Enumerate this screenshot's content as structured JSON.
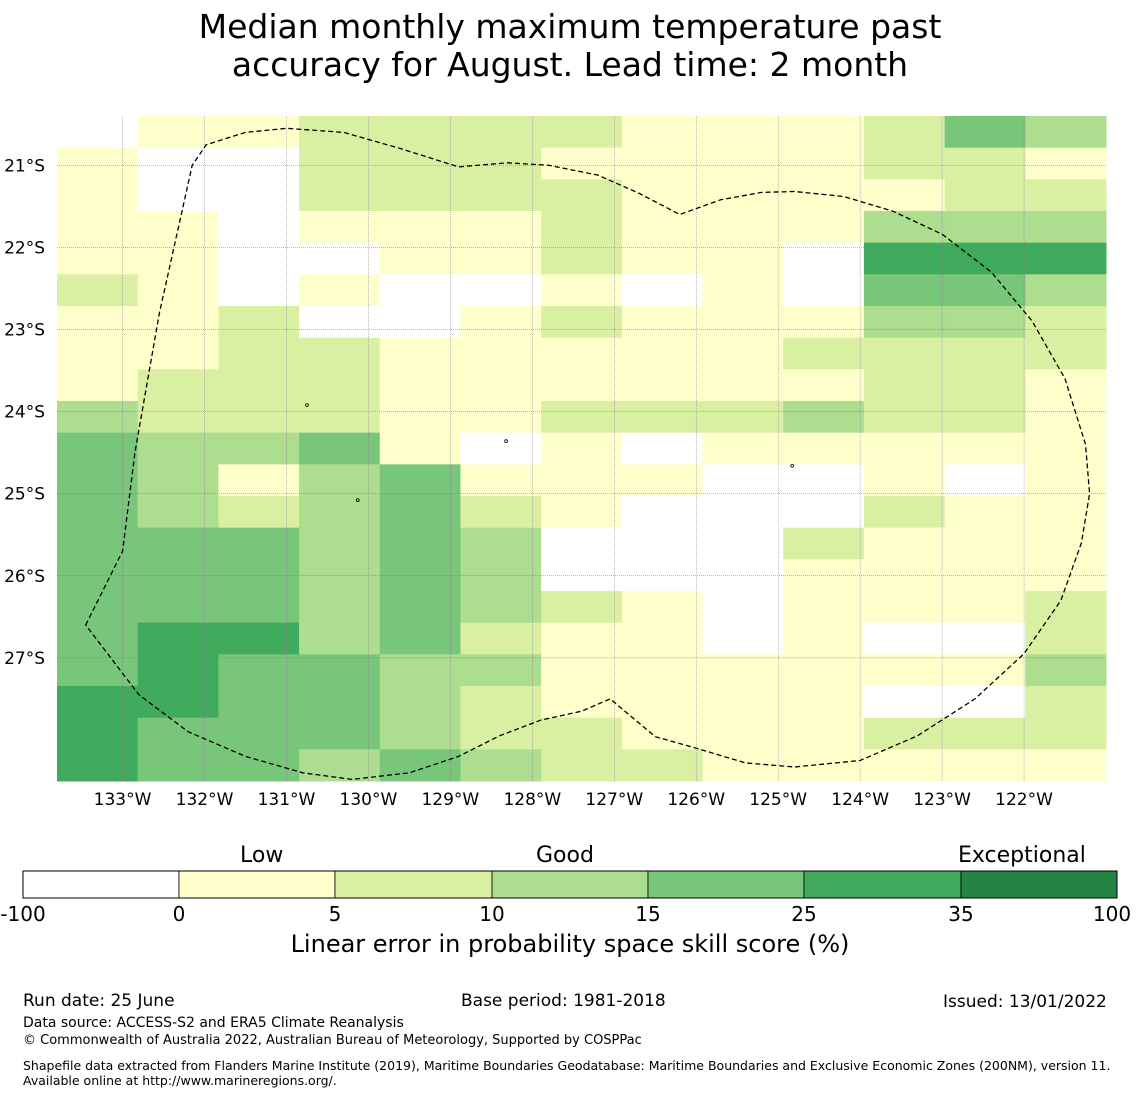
{
  "title": {
    "line1": "Median monthly maximum temperature past",
    "line2": "accuracy for August. Lead time: 2 month"
  },
  "map": {
    "lon_labels": [
      "133°W",
      "132°W",
      "131°W",
      "130°W",
      "129°W",
      "128°W",
      "127°W",
      "126°W",
      "125°W",
      "124°W",
      "123°W",
      "122°W"
    ],
    "lat_labels": [
      "21°S",
      "22°S",
      "23°S",
      "24°S",
      "25°S",
      "26°S",
      "27°S"
    ],
    "lon_range": [
      -133.8,
      -121.0
    ],
    "lat_range": [
      -20.4,
      -28.5
    ],
    "grid_rows": [
      "0112222111243",
      "1002221111221",
      "1002222111122",
      "1101112111333",
      "1100112110555",
      "2101001010443",
      "1120012111332",
      "1122111112222",
      "1222111111221",
      "3222112223221",
      "4334101011111",
      "4313411100101",
      "4323421000211",
      "4443430002111",
      "4443430001111",
      "4443432101112",
      "4553421101002",
      "4544331111113",
      "5544321111002",
      "5444322111222",
      "5443432211111"
    ],
    "boundary_lonlat": [
      [
        -133.45,
        -26.6
      ],
      [
        -133.0,
        -25.7
      ],
      [
        -132.85,
        -24.5
      ],
      [
        -132.55,
        -22.8
      ],
      [
        -132.15,
        -21.0
      ],
      [
        -131.98,
        -20.75
      ],
      [
        -131.5,
        -20.6
      ],
      [
        -131.0,
        -20.55
      ],
      [
        -130.3,
        -20.6
      ],
      [
        -129.6,
        -20.8
      ],
      [
        -128.9,
        -21.02
      ],
      [
        -128.3,
        -20.97
      ],
      [
        -127.8,
        -21.0
      ],
      [
        -127.2,
        -21.12
      ],
      [
        -126.7,
        -21.34
      ],
      [
        -126.2,
        -21.6
      ],
      [
        -125.7,
        -21.42
      ],
      [
        -125.2,
        -21.33
      ],
      [
        -124.8,
        -21.32
      ],
      [
        -124.2,
        -21.38
      ],
      [
        -123.6,
        -21.56
      ],
      [
        -123.0,
        -21.84
      ],
      [
        -122.4,
        -22.3
      ],
      [
        -121.9,
        -22.9
      ],
      [
        -121.5,
        -23.6
      ],
      [
        -121.25,
        -24.4
      ],
      [
        -121.2,
        -25.0
      ],
      [
        -121.3,
        -25.6
      ],
      [
        -121.55,
        -26.3
      ],
      [
        -122.0,
        -26.95
      ],
      [
        -122.6,
        -27.5
      ],
      [
        -123.3,
        -27.95
      ],
      [
        -124.0,
        -28.25
      ],
      [
        -124.8,
        -28.33
      ],
      [
        -125.4,
        -28.28
      ],
      [
        -126.0,
        -28.1
      ],
      [
        -126.5,
        -27.96
      ],
      [
        -127.05,
        -27.5
      ],
      [
        -127.4,
        -27.65
      ],
      [
        -127.9,
        -27.76
      ],
      [
        -128.4,
        -27.95
      ],
      [
        -128.9,
        -28.2
      ],
      [
        -129.5,
        -28.4
      ],
      [
        -130.2,
        -28.48
      ],
      [
        -130.8,
        -28.4
      ],
      [
        -131.5,
        -28.2
      ],
      [
        -132.2,
        -27.9
      ],
      [
        -132.8,
        -27.45
      ],
      [
        -133.45,
        -26.6
      ]
    ],
    "island_markers": [
      [
        -130.75,
        -23.92
      ],
      [
        -128.32,
        -24.36
      ],
      [
        -124.83,
        -24.66
      ],
      [
        -130.13,
        -25.08
      ]
    ]
  },
  "colorbar": {
    "category_labels": [
      "Low",
      "Good",
      "Exceptional"
    ],
    "ticks": [
      "-100",
      "0",
      "5",
      "10",
      "15",
      "25",
      "35",
      "100"
    ],
    "colors": [
      "#ffffff",
      "#ffffcc",
      "#d9f0a3",
      "#addd8e",
      "#78c679",
      "#41ab5d",
      "#238443"
    ],
    "title": "Linear error in probability space skill score (%)"
  },
  "footer": {
    "run_date": "Run date: 25 June",
    "base_period": "Base period: 1981-2018",
    "issued": "Issued: 13/01/2022",
    "data_source": "Data source: ACCESS-S2 and ERA5 Climate Reanalysis",
    "copyright": "© Commonwealth of Australia 2022, Australian Bureau of Meteorology, Supported by COSPPac",
    "shapefile_note": "Shapefile data extracted from Flanders Marine Institute (2019), Maritime Boundaries Geodatabase: Maritime Boundaries and Exclusive Economic Zones (200NM), version 11. Available online at http://www.marineregions.org/."
  }
}
